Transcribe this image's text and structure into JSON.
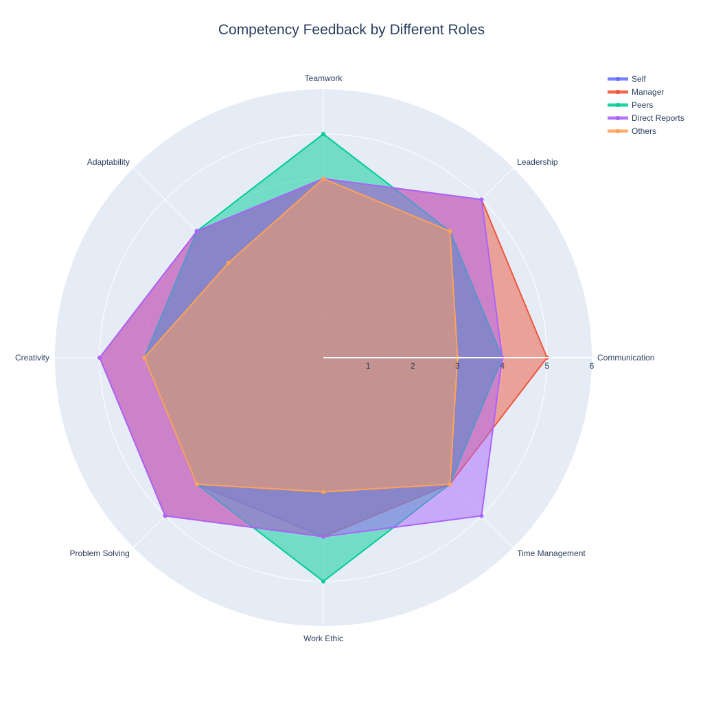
{
  "chart_data": {
    "type": "radar",
    "title": "Competency Feedback by Different Roles",
    "categories": [
      "Communication",
      "Leadership",
      "Teamwork",
      "Adaptability",
      "Creativity",
      "Problem Solving",
      "Work Ethic",
      "Time Management"
    ],
    "radial_range": [
      0,
      6
    ],
    "radial_ticks": [
      "1",
      "2",
      "3",
      "4",
      "5",
      "6"
    ],
    "legend_position": "top-right",
    "series": [
      {
        "name": "Self",
        "color": "#636efa",
        "values": [
          4,
          4,
          4,
          4,
          4,
          4,
          4,
          4
        ]
      },
      {
        "name": "Manager",
        "color": "#ef553b",
        "values": [
          5,
          5,
          4,
          4,
          5,
          5,
          4,
          4
        ]
      },
      {
        "name": "Peers",
        "color": "#00cc96",
        "values": [
          4,
          4,
          5,
          4,
          4,
          4,
          5,
          4
        ]
      },
      {
        "name": "Direct Reports",
        "color": "#ab63fa",
        "values": [
          4,
          5,
          4,
          4,
          5,
          5,
          4,
          5
        ]
      },
      {
        "name": "Others",
        "color": "#ffa15a",
        "values": [
          3,
          4,
          4,
          3,
          4,
          4,
          3,
          4
        ]
      }
    ]
  }
}
